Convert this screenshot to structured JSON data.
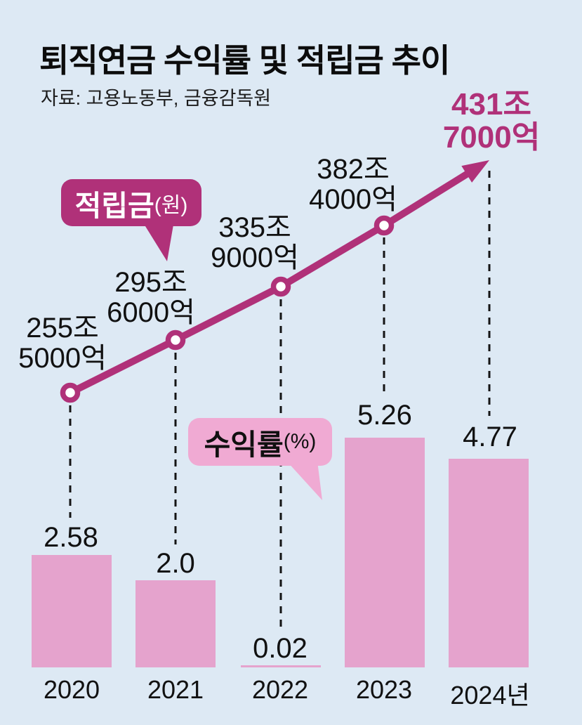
{
  "header": {
    "title": "퇴직연금 수익률 및 적립금 추이",
    "source": "자료: 고용노동부, 금융감독원"
  },
  "legend": {
    "deposit_label": "적립금",
    "deposit_unit": "(원)",
    "return_label": "수익률",
    "return_unit": "(%)"
  },
  "colors": {
    "background": "#dde9f4",
    "line_magenta": "#b03179",
    "bar_pink": "#e5a3cd",
    "bubble_pink": "#f0aad3",
    "highlight_text": "#b03179",
    "text": "#111111",
    "marker_fill": "#ffffff"
  },
  "chart_data": {
    "type": "bar",
    "title": "퇴직연금 수익률 및 적립금 추이",
    "source": "자료: 고용노동부, 금융감독원",
    "categories": [
      "2020",
      "2021",
      "2022",
      "2023",
      "2024년"
    ],
    "series": [
      {
        "name": "수익률(%)",
        "type": "bar",
        "values": [
          2.58,
          2.0,
          0.02,
          5.26,
          4.77
        ],
        "value_labels": [
          "2.58",
          "2.0",
          "0.02",
          "5.26",
          "4.77"
        ]
      },
      {
        "name": "적립금(원)",
        "type": "line",
        "values": [
          255.5,
          295.6,
          335.9,
          382.4,
          431.7
        ],
        "value_labels": [
          [
            "255조",
            "5000억"
          ],
          [
            "295조",
            "6000억"
          ],
          [
            "335조",
            "9000억"
          ],
          [
            "382조",
            "4000억"
          ],
          [
            "431조",
            "7000억"
          ]
        ]
      }
    ],
    "xlabel": "",
    "ylabel": "",
    "grid": false,
    "legend_position": "inline-callouts",
    "highlighted_point": "2024"
  }
}
